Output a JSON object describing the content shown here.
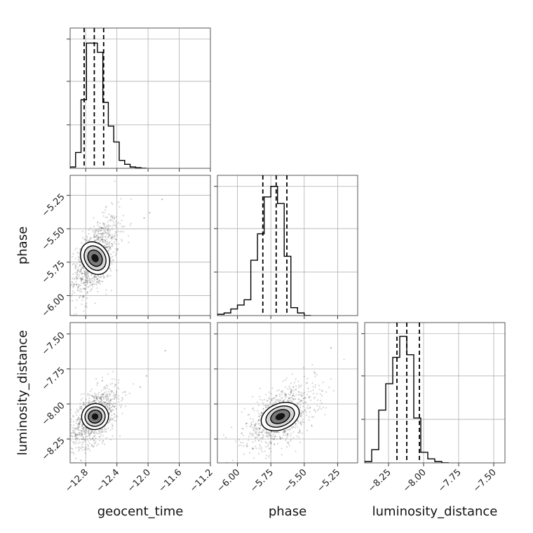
{
  "chart_data": {
    "type": "corner",
    "parameters": [
      "geocent_time",
      "phase",
      "luminosity_distance"
    ],
    "axis_labels": {
      "x": [
        "geocent_time",
        "phase",
        "luminosity_distance"
      ],
      "y": [
        "phase",
        "luminosity_distance"
      ]
    },
    "ranges": {
      "geocent_time": [
        -13.0,
        -11.2
      ],
      "phase": [
        -6.15,
        -5.1
      ],
      "luminosity_distance": [
        -8.42,
        -7.42
      ]
    },
    "ticks": {
      "geocent_time": [
        -12.8,
        -12.4,
        -12.0,
        -11.6,
        -11.2
      ],
      "phase": [
        -6.0,
        -5.75,
        -5.5,
        -5.25
      ],
      "luminosity_distance": [
        -8.25,
        -8.0,
        -7.75,
        -7.5
      ]
    },
    "tick_labels": {
      "geocent_time": [
        "−12.8",
        "−12.4",
        "−12.0",
        "−11.6",
        "−11.2"
      ],
      "phase": [
        "−6.00",
        "−5.75",
        "−5.50",
        "−5.25"
      ],
      "luminosity_distance": [
        "−8.25",
        "−8.00",
        "−7.75",
        "−7.50"
      ]
    },
    "grid": true,
    "colors": {
      "line": "#000000",
      "grid": "#b0b0b0",
      "frame": "#555555"
    },
    "histograms": [
      {
        "parameter": "geocent_time",
        "bin_edges": [
          -13.0,
          -12.93,
          -12.86,
          -12.79,
          -12.72,
          -12.65,
          -12.58,
          -12.51,
          -12.44,
          -12.37,
          -12.3,
          -12.23,
          -12.16,
          -12.09,
          -12.02
        ],
        "heights": [
          0.01,
          0.12,
          0.52,
          0.95,
          0.95,
          0.88,
          0.5,
          0.32,
          0.2,
          0.06,
          0.03,
          0.01,
          0.005,
          0.0
        ],
        "quantiles": [
          -12.82,
          -12.69,
          -12.57
        ]
      },
      {
        "parameter": "phase",
        "bin_edges": [
          -6.15,
          -6.1,
          -6.05,
          -6.0,
          -5.95,
          -5.9,
          -5.85,
          -5.8,
          -5.75,
          -5.7,
          -5.65,
          -5.6,
          -5.55,
          -5.5,
          -5.45
        ],
        "heights": [
          0.01,
          0.02,
          0.05,
          0.08,
          0.12,
          0.42,
          0.62,
          0.9,
          0.98,
          0.85,
          0.45,
          0.06,
          0.02,
          0.0
        ],
        "quantiles": [
          -5.81,
          -5.71,
          -5.63
        ]
      },
      {
        "parameter": "luminosity_distance",
        "bin_edges": [
          -8.42,
          -8.37,
          -8.32,
          -8.27,
          -8.22,
          -8.17,
          -8.12,
          -8.07,
          -8.02,
          -7.97,
          -7.92,
          -7.87,
          -7.82
        ],
        "heights": [
          0.01,
          0.1,
          0.4,
          0.6,
          0.8,
          0.96,
          0.82,
          0.34,
          0.08,
          0.03,
          0.01,
          0.0
        ],
        "quantiles": [
          -8.19,
          -8.12,
          -8.03
        ]
      }
    ],
    "scatter_2d": [
      {
        "x_param": "geocent_time",
        "y_param": "phase",
        "center": [
          -12.68,
          -5.72
        ],
        "spread": [
          0.14,
          0.14
        ],
        "correlation": 0.6,
        "contour_levels_sigma": [
          0.5,
          1.0,
          1.5,
          2.0
        ],
        "outliers": [
          [
            -12.05,
            -5.42
          ],
          [
            -11.82,
            -5.28
          ],
          [
            -11.98,
            -5.38
          ]
        ]
      },
      {
        "x_param": "geocent_time",
        "y_param": "luminosity_distance",
        "center": [
          -12.68,
          -8.09
        ],
        "spread": [
          0.14,
          0.1
        ],
        "correlation": 0.55,
        "contour_levels_sigma": [
          0.5,
          1.0,
          1.5,
          2.0
        ],
        "outliers": [
          [
            -12.02,
            -7.8
          ],
          [
            -11.78,
            -7.62
          ],
          [
            -12.1,
            -7.88
          ]
        ]
      },
      {
        "x_param": "phase",
        "y_param": "luminosity_distance",
        "center": [
          -5.68,
          -8.09
        ],
        "spread": [
          0.12,
          0.1
        ],
        "correlation": 0.5,
        "contour_levels_sigma": [
          0.5,
          1.0,
          1.5,
          2.0
        ],
        "outliers": [
          [
            -5.3,
            -7.6
          ],
          [
            -5.42,
            -7.78
          ],
          [
            -5.48,
            -7.85
          ]
        ]
      }
    ]
  }
}
